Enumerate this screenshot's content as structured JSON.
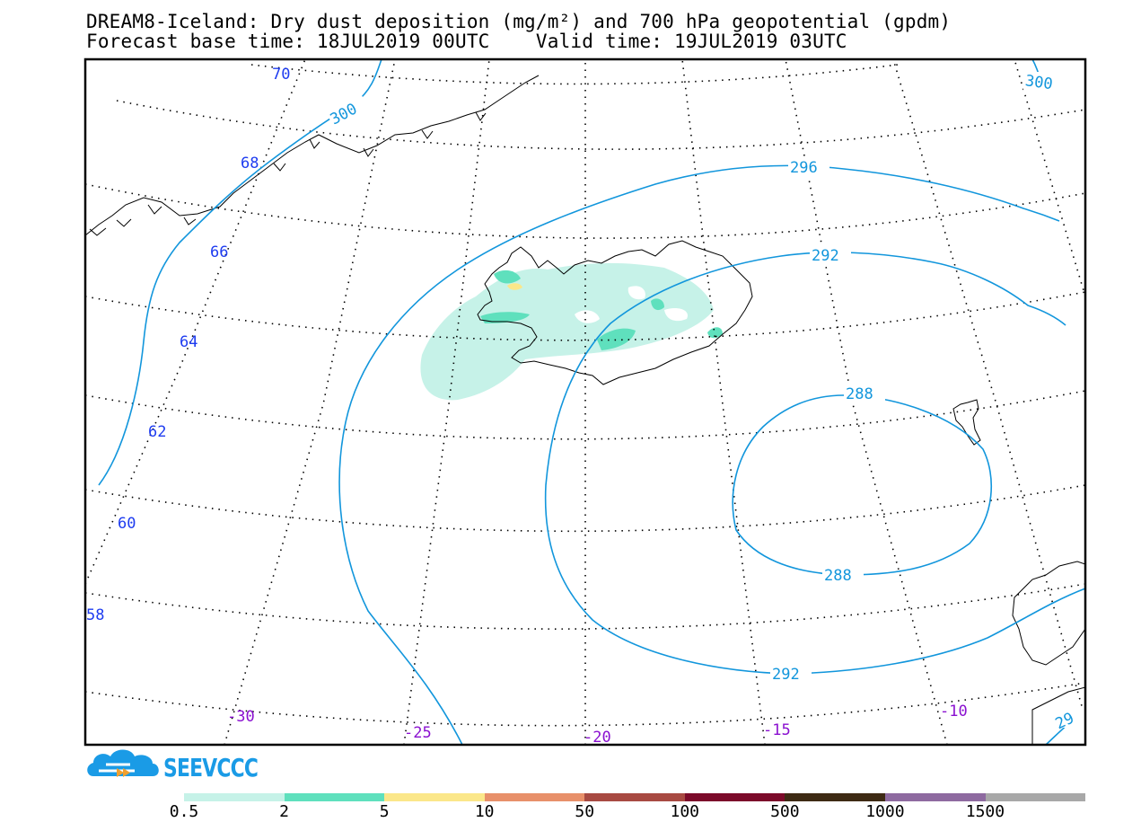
{
  "title": {
    "line1": "DREAM8-Iceland: Dry dust deposition (mg/m²) and 700 hPa geopotential (gpdm)",
    "line2": "Forecast base time: 18JUL2019 00UTC    Valid time: 19JUL2019 03UTC"
  },
  "latitude_labels": [
    "70",
    "68",
    "66",
    "64",
    "62",
    "60",
    "58"
  ],
  "longitude_labels": [
    "-30",
    "-25",
    "-20",
    "-15",
    "-10"
  ],
  "contour_labels": {
    "c300a": "300",
    "c300b": "300",
    "c296": "296",
    "c292a": "292",
    "c292b": "292",
    "c288a": "288",
    "c288b": "288",
    "c29x": "29"
  },
  "colorbar": {
    "colors": [
      "#c6f2e8",
      "#5fe0bd",
      "#fbe78a",
      "#e8906a",
      "#a84a42",
      "#7c0a2a",
      "#3e2a14",
      "#8e6aa0",
      "#a8a8a8"
    ],
    "labels": [
      "0.5",
      "2",
      "5",
      "10",
      "50",
      "100",
      "500",
      "1000",
      "1500"
    ]
  },
  "colors": {
    "contour": "#1296dc",
    "lat_label": "#1e3cf0",
    "lon_label": "#8a10d0",
    "coast": "#000000"
  },
  "logo": {
    "text": "SEEVCCC",
    "icon": "cloud-logo-icon"
  }
}
